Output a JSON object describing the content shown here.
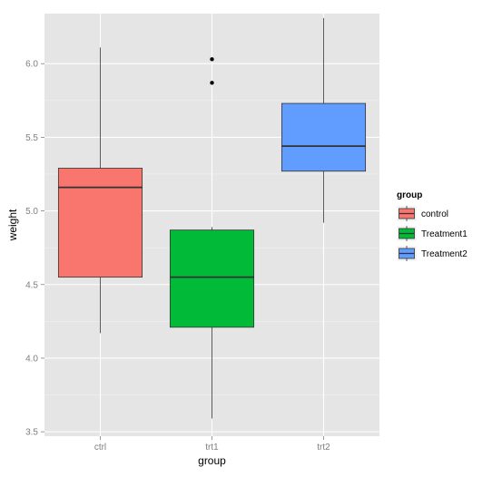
{
  "chart_data": {
    "type": "boxplot",
    "xlabel": "group",
    "ylabel": "weight",
    "categories": [
      "ctrl",
      "trt1",
      "trt2"
    ],
    "ylim": [
      3.47,
      6.34
    ],
    "y_ticks": [
      3.5,
      4.0,
      4.5,
      5.0,
      5.5,
      6.0
    ],
    "y_tick_labels": [
      "3.5",
      "4.0",
      "4.5",
      "5.0",
      "5.5",
      "6.0"
    ],
    "grid": true,
    "legend": {
      "title": "group",
      "position": "right",
      "entries": [
        {
          "label": "control",
          "color": "#F8766D"
        },
        {
          "label": "Treatment1",
          "color": "#00BA38"
        },
        {
          "label": "Treatment2",
          "color": "#619CFF"
        }
      ]
    },
    "boxes": [
      {
        "category": "ctrl",
        "whisker_low": 4.17,
        "q1": 4.55,
        "median": 5.16,
        "q3": 5.29,
        "whisker_high": 6.11,
        "outliers": []
      },
      {
        "category": "trt1",
        "whisker_low": 3.59,
        "q1": 4.21,
        "median": 4.55,
        "q3": 4.87,
        "whisker_high": 4.89,
        "outliers": [
          5.87,
          6.03
        ]
      },
      {
        "category": "trt2",
        "whisker_low": 4.92,
        "q1": 5.27,
        "median": 5.44,
        "q3": 5.73,
        "whisker_high": 6.31,
        "outliers": []
      }
    ]
  },
  "colors": {
    "panel_background": "#E5E5E5",
    "grid_major": "#FFFFFF",
    "grid_minor": "#F2F2F2",
    "box_outline": "#333333"
  }
}
